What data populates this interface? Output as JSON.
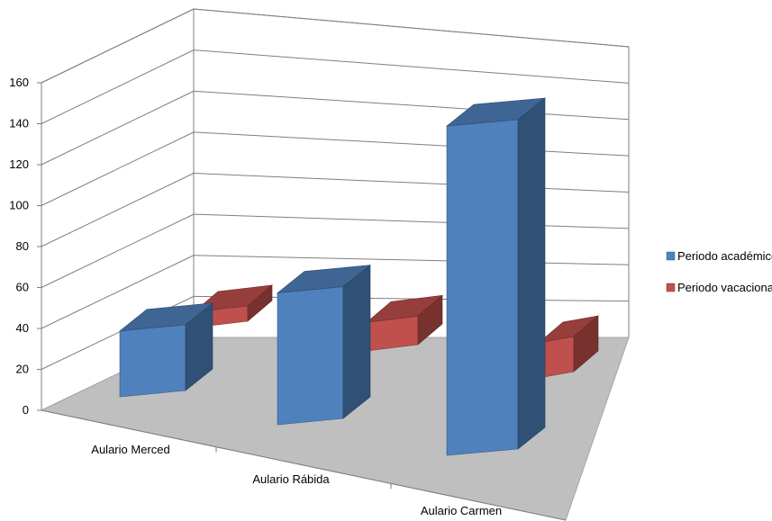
{
  "chart_data": {
    "type": "bar",
    "title": "",
    "xlabel": "",
    "ylabel": "",
    "categories": [
      "Aulario Merced",
      "Aulario Rábida",
      "Aulario Carmen"
    ],
    "series": [
      {
        "name": "Periodo académico",
        "values": [
          30,
          60,
          150
        ],
        "color": "#4f81bd"
      },
      {
        "name": "Periodo vacacional",
        "values": [
          7,
          13,
          16
        ],
        "color": "#c0504d"
      }
    ],
    "ylim": [
      0,
      160
    ],
    "yticks": [
      0,
      20,
      40,
      60,
      80,
      100,
      120,
      140,
      160
    ],
    "grid": true,
    "legend_position": "right",
    "view": "3d"
  }
}
